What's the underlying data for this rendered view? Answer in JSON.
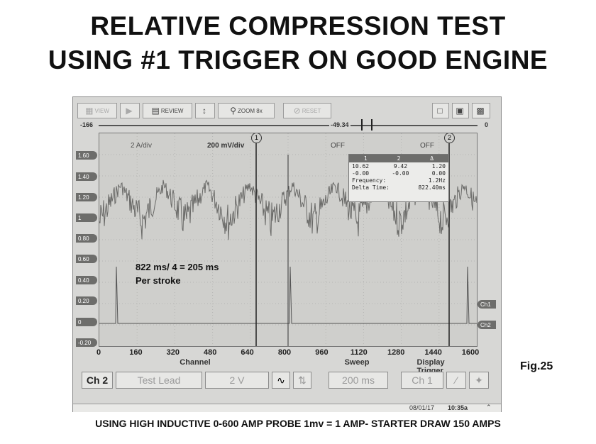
{
  "title_line1": "RELATIVE COMPRESSION TEST",
  "title_line2": "USING #1 TRIGGER ON GOOD ENGINE",
  "toolbar": {
    "view_label": "VIEW",
    "review_label": "REVIEW",
    "zoom_label": "ZOOM",
    "zoom_value": "8x",
    "reset_label": "RESET"
  },
  "topbar": {
    "left_value": "-166",
    "center_value": "-49.34",
    "right_value": "0"
  },
  "plot": {
    "ch1_scale": "2 A/div",
    "ch2_scale": "200 mV/div",
    "off_label1": "OFF",
    "off_label2": "OFF",
    "cursor1_label": "1",
    "cursor2_label": "2",
    "y_ticks": [
      "1.60",
      "1.40",
      "1.20",
      "1",
      "0.80",
      "0.60",
      "0.40",
      "0.20",
      "0",
      "-0.20"
    ],
    "ch_markers": [
      "Ch1",
      "Ch2"
    ]
  },
  "cursor_box": {
    "headers": [
      "1",
      "2",
      "Δ"
    ],
    "row1": [
      "10.62",
      "9.42",
      "1.20"
    ],
    "row2": [
      "-0.00",
      "-0.00",
      "0.00"
    ],
    "frequency_label": "Frequency:",
    "frequency_value": "1.2Hz",
    "delta_label": "Delta Time:",
    "delta_value": "822.40ms"
  },
  "x_ticks": [
    "0",
    "160",
    "320",
    "480",
    "640",
    "800",
    "960",
    "1120",
    "1280",
    "1440",
    "1600"
  ],
  "section_labels": {
    "channel": "Channel",
    "sweep": "Sweep",
    "display_trigger": "Display Trigger"
  },
  "bottom": {
    "channel_btn": "Ch 2",
    "probe": "Test Lead",
    "volts": "2 V",
    "sweep_value": "200 ms",
    "trigger_channel": "Ch 1"
  },
  "status": {
    "date": "08/01/17",
    "time": "10:35a"
  },
  "annotation": {
    "line1": "822 ms/ 4 = 205 ms",
    "line2": "Per stroke"
  },
  "fig_label": "Fig.25",
  "footer": "USING HIGH INDUCTIVE 0-600 AMP PROBE 1mv = 1 AMP- STARTER DRAW 150 AMPS",
  "colors": {
    "screen_bg": "#cfcfcc",
    "trace": "#6a6a68",
    "tab": "#6d6d6b"
  }
}
